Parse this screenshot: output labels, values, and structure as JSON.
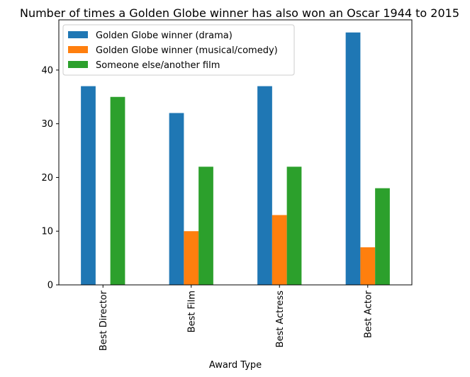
{
  "chart_data": {
    "type": "bar",
    "title": "Number of times a Golden Globe winner has also won an Oscar 1944 to 2015",
    "xlabel": "Award Type",
    "ylabel": "",
    "categories": [
      "Best Director",
      "Best Film",
      "Best Actress",
      "Best Actor"
    ],
    "series": [
      {
        "name": "Golden Globe winner (drama)",
        "values": [
          37,
          32,
          37,
          47
        ],
        "color": "#1f77b4"
      },
      {
        "name": "Golden Globe winner (musical/comedy)",
        "values": [
          0,
          10,
          13,
          7
        ],
        "color": "#ff7f0e"
      },
      {
        "name": "Someone else/another film",
        "values": [
          35,
          22,
          22,
          18
        ],
        "color": "#2ca02c"
      }
    ],
    "ylim": [
      0,
      49.35
    ],
    "yticks": [
      0,
      10,
      20,
      30,
      40
    ],
    "grid": false,
    "legend_position": "top-left"
  }
}
